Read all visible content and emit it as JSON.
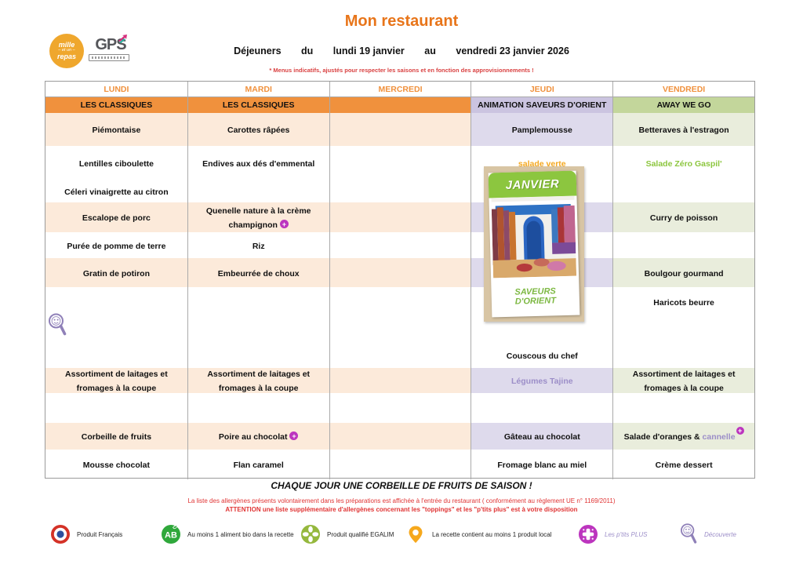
{
  "header": {
    "title": "Mon restaurant",
    "meal": "Déjeuners",
    "du": "du",
    "date_start": "lundi 19 janvier",
    "au": "au",
    "date_end": "vendredi 23 janvier 2026",
    "note": "* Menus indicatifs, ajustés pour respecter les saisons et en fonction des approvisionnements !",
    "logo_mille": {
      "line1": "mille",
      "line2": "et un",
      "line3": "repas"
    },
    "logo_gps": {
      "text": "GPS"
    }
  },
  "menu": {
    "row_keys": [
      "entree_a",
      "entree_b",
      "entree_c",
      "plat",
      "acc_a",
      "acc_b",
      "free_a",
      "free_b",
      "free_c",
      "laitages",
      "free_d",
      "dessert",
      "last"
    ],
    "colored_rows": [
      "entree_a",
      "plat",
      "acc_b",
      "laitages",
      "dessert"
    ],
    "days": [
      {
        "id": "lundi",
        "label": "LUNDI",
        "scheme": "orange",
        "theme": "LES CLASSIQUES",
        "rows": {
          "entree_a": {
            "t": "Piémontaise"
          },
          "entree_b": {
            "t": "Lentilles ciboulette"
          },
          "entree_c": {
            "t": "Céleri vinaigrette au citron"
          },
          "plat": {
            "t": "Escalope de porc"
          },
          "acc_a": {
            "t": "Purée de pomme de terre"
          },
          "acc_b": {
            "t": "Gratin de potiron"
          },
          "laitages": {
            "t": "Assortiment de laitages et fromages à la coupe"
          },
          "dessert": {
            "t": "Corbeille de fruits"
          },
          "last": {
            "t": "Mousse chocolat"
          }
        }
      },
      {
        "id": "mardi",
        "label": "MARDI",
        "scheme": "orange",
        "theme": "LES CLASSIQUES",
        "rows": {
          "entree_a": {
            "t": "Carottes râpées"
          },
          "entree_b": {
            "t": "Endives aux dés d'emmental"
          },
          "plat": {
            "t": "Quenelle nature à la crème champignon",
            "plus": true
          },
          "acc_a": {
            "t": "Riz"
          },
          "acc_b": {
            "t": "Embeurrée de choux"
          },
          "laitages": {
            "t": "Assortiment de laitages et fromages à la coupe"
          },
          "dessert": {
            "t": "Poire au chocolat",
            "plus": true
          },
          "last": {
            "t": "Flan caramel"
          }
        }
      },
      {
        "id": "mercredi",
        "label": "MERCREDI",
        "scheme": "orange",
        "theme": "",
        "rows": {}
      },
      {
        "id": "jeudi",
        "label": "JEUDI",
        "scheme": "purple",
        "theme": "ANIMATION SAVEURS D'ORIENT",
        "rows": {
          "entree_a": {
            "t": "Pamplemousse"
          },
          "entree_b": {
            "t": "salade verte",
            "cls": "amber"
          },
          "free_c": {
            "t": "Couscous du chef"
          },
          "laitages": {
            "t": "Légumes Tajine",
            "cls": "purple"
          },
          "dessert": {
            "t": "Gâteau au chocolat"
          },
          "last": {
            "t": "Fromage blanc au miel"
          }
        }
      },
      {
        "id": "vendredi",
        "label": "VENDREDI",
        "scheme": "green",
        "theme": "AWAY WE GO",
        "rows": {
          "entree_a": {
            "t": "Betteraves à l'estragon"
          },
          "entree_b": {
            "t": "Salade Zéro Gaspil'",
            "cls": "green"
          },
          "plat": {
            "t": "Curry de poisson"
          },
          "acc_b": {
            "t": "Boulgour gourmand"
          },
          "free_a": {
            "t": "Haricots beurre"
          },
          "laitages": {
            "t": "Assortiment de laitages et fromages à la coupe"
          },
          "dessert": {
            "t": "Salade d'oranges & ",
            "accent": "cannelle",
            "plus": true,
            "sup": true
          },
          "last": {
            "t": "Crème dessert"
          }
        }
      }
    ]
  },
  "card": {
    "month": "JANVIER",
    "caption": "SAVEURS D'ORIENT"
  },
  "bottom": {
    "fruits_line": "CHAQUE JOUR UNE CORBEILLE DE FRUITS DE SAISON !",
    "allergen_line1": "La liste des allergènes présents volontairement dans les préparations est affichée à l'entrée du restaurant ( conformément au règlement UE n° 1169/2011)",
    "allergen_line2": "ATTENTION une liste supplémentaire d'allergènes concernant les \"toppings\" et les \"p'tits plus\" est à votre disposition"
  },
  "legend": {
    "items": [
      {
        "icon": "french-product-icon",
        "label": "Produit Français"
      },
      {
        "icon": "organic-ab-icon",
        "label": "Au moins 1 aliment bio dans la recette"
      },
      {
        "icon": "egalim-icon",
        "label": "Produit qualifié EGALIM"
      },
      {
        "icon": "local-product-icon",
        "label": "La recette contient au moins 1 produit local"
      },
      {
        "icon": "ptits-plus-icon",
        "label": "Les p'tits PLUS"
      },
      {
        "icon": "discovery-icon",
        "label": "Découverte"
      }
    ]
  },
  "colors": {
    "title_orange": "#E8751A",
    "theme_orange": "#F0913D",
    "row_peach": "#FCEADA",
    "theme_purple": "#CBC4E0",
    "row_purple": "#DEDAEC",
    "theme_green": "#C3D69B",
    "row_green": "#E9EDDC",
    "accent_amber": "#F5A820",
    "accent_green": "#8CC63E",
    "accent_purple": "#9C8EC8",
    "plus_magenta": "#BC35BE",
    "alert_red": "#E03434"
  }
}
